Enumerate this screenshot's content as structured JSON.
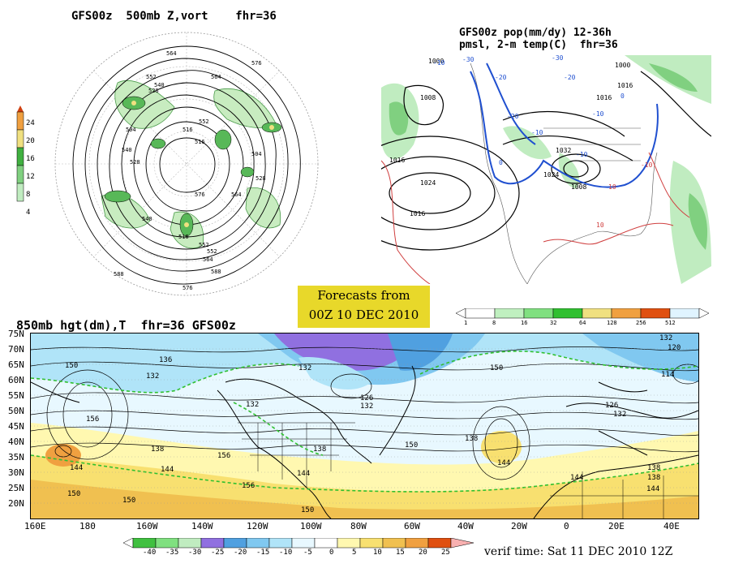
{
  "polar_panel": {
    "title": "GFS00z  500mb Z,vort    fhr=36",
    "colorbar_ticks": [
      "24",
      "20",
      "16",
      "12",
      "8",
      "4"
    ],
    "colorbar_colors": [
      "#d04010",
      "#f0a040",
      "#f0e080",
      "#40b040",
      "#80d080",
      "#c0ecc0"
    ],
    "contour_labels": [
      "564",
      "576",
      "552",
      "540",
      "528",
      "516",
      "504",
      "552",
      "564",
      "540",
      "528",
      "516",
      "576",
      "588",
      "564",
      "552",
      "540",
      "528",
      "516",
      "504",
      "588",
      "576",
      "564",
      "552"
    ]
  },
  "surface_panel": {
    "title_line1": "GFS00z pop(mm/dy) 12-36h",
    "title_line2": "pmsl, 2-m temp(C)  fhr=36",
    "pressure_labels": [
      "1000",
      "1008",
      "1016",
      "1024",
      "1016",
      "1032",
      "1024",
      "1016",
      "1008",
      "1016",
      "1000"
    ],
    "temp_labels": [
      "-10",
      "-20",
      "-30",
      "-20",
      "-10",
      "0",
      "10",
      "-10",
      "-30",
      "-20",
      "-10",
      "10",
      "0",
      "-10"
    ]
  },
  "forecast_box": {
    "line1": "Forecasts from",
    "line2": "00Z 10 DEC 2010"
  },
  "pop_colorbar": {
    "labels": [
      "1",
      "8",
      "16",
      "32",
      "64",
      "128",
      "256",
      "512"
    ],
    "colors": [
      "#ffffff",
      "#c0f0c0",
      "#80e080",
      "#30c030",
      "#f0e080",
      "#f0a040",
      "#e05010",
      "#ffffff"
    ]
  },
  "main_panel": {
    "title": "850mb hgt(dm),T  fhr=36 GFS00z",
    "lat_labels": [
      "75N",
      "70N",
      "65N",
      "60N",
      "55N",
      "50N",
      "45N",
      "40N",
      "35N",
      "30N",
      "25N",
      "20N"
    ],
    "lon_labels": [
      "160E",
      "180",
      "160W",
      "140W",
      "120W",
      "100W",
      "80W",
      "60W",
      "40W",
      "20W",
      "0",
      "20E",
      "40E"
    ],
    "height_labels": [
      "150",
      "136",
      "132",
      "156",
      "138",
      "144",
      "150",
      "144",
      "132",
      "126",
      "132",
      "138",
      "144",
      "150",
      "156",
      "132",
      "138",
      "144",
      "150",
      "150",
      "138",
      "144",
      "132",
      "120",
      "114",
      "126",
      "132",
      "138",
      "144",
      "150",
      "156"
    ]
  },
  "temp_colorbar": {
    "labels": [
      "-40",
      "-35",
      "-30",
      "-25",
      "-20",
      "-15",
      "-10",
      "-5",
      "0",
      "5",
      "10",
      "15",
      "20",
      "25"
    ],
    "colors": [
      "#40c040",
      "#80e080",
      "#c0ecc0",
      "#9070e0",
      "#50a0e0",
      "#80c8f0",
      "#b0e4f8",
      "#e8f8ff",
      "#ffffff",
      "#fff8b0",
      "#f8e070",
      "#f0c050",
      "#f0a040",
      "#e05010",
      "#f8b0b0"
    ]
  },
  "verif_time": "verif time: Sat 11 DEC 2010 12Z",
  "chart_data": [
    {
      "type": "heatmap",
      "title": "GFS00z  500mb Z,vort    fhr=36",
      "contour_values_dm": [
        504,
        516,
        528,
        540,
        552,
        564,
        576,
        588
      ],
      "colorbar": [
        4,
        8,
        12,
        16,
        20,
        24
      ]
    },
    {
      "type": "heatmap",
      "title": "GFS00z pop(mm/dy) 12-36h pmsl, 2-m temp(C)  fhr=36",
      "pop_levels_mm_per_day": [
        1,
        8,
        16,
        32,
        64,
        128,
        256,
        512
      ],
      "pressure_contours_hPa": [
        1000,
        1008,
        1016,
        1024,
        1032
      ],
      "temp_contours_C": [
        -30,
        -20,
        -10,
        0,
        10
      ]
    },
    {
      "type": "heatmap",
      "title": "850mb hgt(dm),T  fhr=36 GFS00z",
      "ylim": [
        "20N",
        "75N"
      ],
      "xlim": [
        "160E",
        "40E"
      ],
      "temperature_levels_C": [
        -40,
        -35,
        -30,
        -25,
        -20,
        -15,
        -10,
        -5,
        0,
        5,
        10,
        15,
        20,
        25
      ],
      "height_contours_dm": [
        114,
        120,
        126,
        132,
        138,
        144,
        150,
        156
      ]
    }
  ]
}
